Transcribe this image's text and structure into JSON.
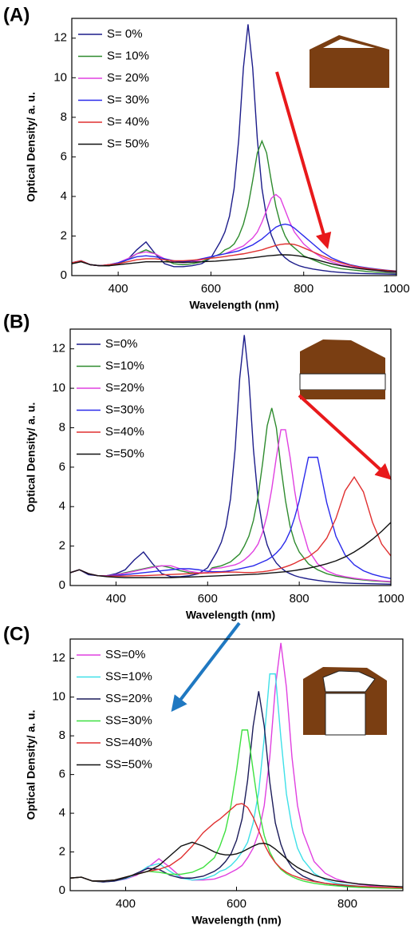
{
  "chart_data": [
    {
      "type": "line",
      "title": "(A)",
      "y_label": "Optical Density/ a. u.",
      "x_label": "Wavelength (nm)",
      "xlim": [
        300,
        1000
      ],
      "xticks": [
        400,
        600,
        800,
        1000
      ],
      "ylim": [
        0,
        13
      ],
      "yticks": [
        0,
        2,
        4,
        6,
        8,
        10,
        12
      ],
      "legend": "upper left",
      "x": [
        300,
        320,
        340,
        360,
        380,
        400,
        420,
        440,
        460,
        480,
        500,
        520,
        540,
        560,
        580,
        600,
        610,
        620,
        630,
        640,
        650,
        660,
        670,
        680,
        690,
        700,
        710,
        720,
        730,
        740,
        750,
        760,
        770,
        780,
        790,
        800,
        820,
        840,
        860,
        880,
        900,
        920,
        940,
        960,
        980,
        1000
      ],
      "series": [
        {
          "name": "S= 0%",
          "color": "#1c1c8a",
          "values": [
            0.65,
            0.75,
            0.55,
            0.5,
            0.5,
            0.6,
            0.8,
            1.3,
            1.7,
            1.1,
            0.6,
            0.45,
            0.45,
            0.5,
            0.6,
            0.9,
            1.3,
            1.7,
            2.2,
            3.0,
            4.4,
            6.9,
            10.5,
            12.7,
            10.5,
            6.9,
            4.4,
            2.95,
            2.06,
            1.5,
            1.14,
            0.9,
            0.72,
            0.6,
            0.5,
            0.43,
            0.33,
            0.26,
            0.2,
            0.16,
            0.13,
            0.11,
            0.1,
            0.09,
            0.08,
            0.07
          ]
        },
        {
          "name": "S= 10%",
          "color": "#2e8b2e",
          "values": [
            0.65,
            0.75,
            0.55,
            0.5,
            0.5,
            0.6,
            0.8,
            1.1,
            1.3,
            1.1,
            0.8,
            0.6,
            0.55,
            0.6,
            0.7,
            0.9,
            1.0,
            1.1,
            1.3,
            1.4,
            1.6,
            2.0,
            2.6,
            3.5,
            4.8,
            6.2,
            6.8,
            6.2,
            4.8,
            3.5,
            2.6,
            2.0,
            1.6,
            1.4,
            1.2,
            1.0,
            0.8,
            0.6,
            0.45,
            0.35,
            0.3,
            0.25,
            0.2,
            0.17,
            0.15,
            0.13
          ]
        },
        {
          "name": "S= 20%",
          "color": "#e040e0",
          "values": [
            0.65,
            0.75,
            0.55,
            0.5,
            0.55,
            0.65,
            0.85,
            1.1,
            1.2,
            1.1,
            0.85,
            0.7,
            0.65,
            0.7,
            0.8,
            0.95,
            1.0,
            1.05,
            1.1,
            1.2,
            1.3,
            1.4,
            1.5,
            1.7,
            1.9,
            2.2,
            2.7,
            3.3,
            3.9,
            4.1,
            3.9,
            3.3,
            2.7,
            2.2,
            1.9,
            1.6,
            1.2,
            0.9,
            0.7,
            0.55,
            0.45,
            0.38,
            0.3,
            0.25,
            0.2,
            0.17
          ]
        },
        {
          "name": "S= 30%",
          "color": "#2a2aeb",
          "values": [
            0.65,
            0.75,
            0.55,
            0.5,
            0.55,
            0.65,
            0.8,
            0.95,
            1.0,
            0.95,
            0.85,
            0.75,
            0.7,
            0.75,
            0.85,
            0.95,
            1.0,
            1.05,
            1.1,
            1.15,
            1.2,
            1.25,
            1.35,
            1.45,
            1.55,
            1.7,
            1.85,
            2.05,
            2.25,
            2.45,
            2.55,
            2.6,
            2.55,
            2.4,
            2.2,
            2.0,
            1.6,
            1.2,
            0.9,
            0.7,
            0.55,
            0.45,
            0.38,
            0.32,
            0.27,
            0.23
          ]
        },
        {
          "name": "S= 40%",
          "color": "#e03030",
          "values": [
            0.65,
            0.75,
            0.55,
            0.5,
            0.55,
            0.6,
            0.7,
            0.8,
            0.85,
            0.85,
            0.8,
            0.75,
            0.75,
            0.78,
            0.82,
            0.88,
            0.9,
            0.93,
            0.96,
            1.0,
            1.03,
            1.07,
            1.1,
            1.15,
            1.2,
            1.25,
            1.3,
            1.38,
            1.45,
            1.52,
            1.57,
            1.6,
            1.6,
            1.57,
            1.5,
            1.4,
            1.2,
            1.0,
            0.8,
            0.65,
            0.52,
            0.42,
            0.35,
            0.3,
            0.26,
            0.22
          ]
        },
        {
          "name": "S= 50%",
          "color": "#111111",
          "values": [
            0.6,
            0.7,
            0.55,
            0.5,
            0.5,
            0.55,
            0.6,
            0.65,
            0.7,
            0.7,
            0.7,
            0.68,
            0.67,
            0.68,
            0.7,
            0.72,
            0.73,
            0.75,
            0.77,
            0.79,
            0.81,
            0.83,
            0.85,
            0.88,
            0.9,
            0.93,
            0.96,
            0.99,
            1.01,
            1.03,
            1.05,
            1.05,
            1.04,
            1.02,
            0.99,
            0.95,
            0.85,
            0.72,
            0.6,
            0.5,
            0.42,
            0.35,
            0.3,
            0.26,
            0.22,
            0.2
          ]
        }
      ]
    },
    {
      "type": "line",
      "title": "(B)",
      "y_label": "Optical Density/ a. u.",
      "x_label": "Wavelength (nm)",
      "xlim": [
        300,
        1000
      ],
      "xticks": [
        400,
        600,
        800,
        1000
      ],
      "ylim": [
        0,
        13
      ],
      "yticks": [
        0,
        2,
        4,
        6,
        8,
        10,
        12
      ],
      "legend": "upper left",
      "x": [
        300,
        320,
        340,
        360,
        380,
        400,
        420,
        440,
        460,
        480,
        500,
        520,
        540,
        560,
        580,
        600,
        610,
        620,
        630,
        640,
        650,
        660,
        670,
        680,
        690,
        700,
        710,
        720,
        730,
        740,
        750,
        760,
        770,
        780,
        790,
        800,
        820,
        840,
        860,
        880,
        900,
        920,
        940,
        960,
        980,
        1000
      ],
      "series": [
        {
          "name": "S=0%",
          "color": "#1c1c8a",
          "values": [
            0.65,
            0.8,
            0.55,
            0.5,
            0.5,
            0.6,
            0.8,
            1.3,
            1.7,
            1.1,
            0.6,
            0.45,
            0.45,
            0.5,
            0.6,
            0.9,
            1.3,
            1.7,
            2.2,
            3.0,
            4.4,
            6.9,
            10.5,
            12.7,
            10.5,
            6.9,
            4.4,
            2.95,
            2.06,
            1.5,
            1.14,
            0.9,
            0.72,
            0.6,
            0.5,
            0.43,
            0.33,
            0.26,
            0.2,
            0.16,
            0.13,
            0.11,
            0.1,
            0.09,
            0.08,
            0.07
          ]
        },
        {
          "name": "S=10%",
          "color": "#2e8b2e",
          "values": [
            0.65,
            0.8,
            0.6,
            0.5,
            0.5,
            0.55,
            0.65,
            0.75,
            0.85,
            0.95,
            1.0,
            0.9,
            0.75,
            0.65,
            0.62,
            0.65,
            0.9,
            0.95,
            1.0,
            1.1,
            1.2,
            1.4,
            1.6,
            2.0,
            2.5,
            3.3,
            4.5,
            6.2,
            8.1,
            9.0,
            8.0,
            6.0,
            4.3,
            3.0,
            2.2,
            1.7,
            1.1,
            0.8,
            0.6,
            0.48,
            0.4,
            0.33,
            0.28,
            0.24,
            0.21,
            0.18
          ]
        },
        {
          "name": "S=20%",
          "color": "#e040e0",
          "values": [
            0.65,
            0.8,
            0.6,
            0.5,
            0.5,
            0.55,
            0.62,
            0.72,
            0.82,
            0.92,
            1.0,
            1.0,
            0.85,
            0.72,
            0.65,
            0.65,
            0.85,
            0.88,
            0.9,
            0.95,
            1.0,
            1.05,
            1.15,
            1.3,
            1.5,
            1.75,
            2.1,
            2.7,
            3.6,
            4.9,
            6.5,
            7.9,
            7.9,
            6.5,
            4.8,
            3.4,
            1.8,
            1.1,
            0.75,
            0.55,
            0.45,
            0.37,
            0.31,
            0.27,
            0.23,
            0.2
          ]
        },
        {
          "name": "S=30%",
          "color": "#2a2aeb",
          "values": [
            0.65,
            0.8,
            0.6,
            0.5,
            0.5,
            0.52,
            0.55,
            0.6,
            0.65,
            0.7,
            0.75,
            0.8,
            0.85,
            0.85,
            0.8,
            0.72,
            0.7,
            0.7,
            0.7,
            0.72,
            0.75,
            0.8,
            0.85,
            0.9,
            0.95,
            1.0,
            1.1,
            1.2,
            1.3,
            1.45,
            1.65,
            1.9,
            2.25,
            2.75,
            3.45,
            4.3,
            6.5,
            6.5,
            4.2,
            2.5,
            1.55,
            1.05,
            0.75,
            0.57,
            0.45,
            0.35
          ]
        },
        {
          "name": "S=40%",
          "color": "#e03030",
          "values": [
            0.65,
            0.8,
            0.6,
            0.5,
            0.48,
            0.48,
            0.48,
            0.5,
            0.5,
            0.52,
            0.54,
            0.56,
            0.58,
            0.6,
            0.62,
            0.64,
            0.65,
            0.66,
            0.67,
            0.68,
            0.68,
            0.68,
            0.67,
            0.66,
            0.66,
            0.66,
            0.68,
            0.7,
            0.73,
            0.77,
            0.82,
            0.88,
            0.95,
            1.03,
            1.13,
            1.25,
            1.45,
            1.8,
            2.4,
            3.4,
            4.8,
            5.5,
            4.75,
            3.2,
            2.1,
            1.5
          ]
        },
        {
          "name": "S=50%",
          "color": "#111111",
          "values": [
            0.65,
            0.8,
            0.6,
            0.5,
            0.45,
            0.42,
            0.4,
            0.4,
            0.4,
            0.4,
            0.4,
            0.4,
            0.42,
            0.43,
            0.45,
            0.47,
            0.48,
            0.49,
            0.5,
            0.51,
            0.52,
            0.53,
            0.54,
            0.55,
            0.56,
            0.57,
            0.58,
            0.6,
            0.62,
            0.64,
            0.66,
            0.68,
            0.7,
            0.73,
            0.76,
            0.8,
            0.88,
            0.98,
            1.1,
            1.25,
            1.45,
            1.7,
            2.0,
            2.35,
            2.75,
            3.2
          ]
        }
      ]
    },
    {
      "type": "line",
      "title": "(C)",
      "y_label": "Optical Density/ a. u.",
      "x_label": "Wavelength (nm)",
      "xlim": [
        300,
        900
      ],
      "xticks": [
        400,
        600,
        800
      ],
      "ylim": [
        0,
        13
      ],
      "yticks": [
        0,
        2,
        4,
        6,
        8,
        10,
        12
      ],
      "legend": "upper left",
      "x": [
        300,
        320,
        340,
        360,
        380,
        400,
        420,
        440,
        460,
        480,
        500,
        520,
        540,
        560,
        570,
        580,
        590,
        600,
        610,
        620,
        630,
        640,
        650,
        660,
        670,
        680,
        690,
        700,
        710,
        720,
        740,
        760,
        780,
        800,
        820,
        840,
        860,
        880,
        900
      ],
      "series": [
        {
          "name": "SS=0%",
          "color": "#e040e0",
          "values": [
            0.65,
            0.7,
            0.5,
            0.45,
            0.5,
            0.6,
            0.8,
            1.2,
            1.65,
            1.2,
            0.7,
            0.55,
            0.55,
            0.6,
            0.7,
            0.8,
            0.95,
            1.1,
            1.3,
            1.7,
            2.2,
            3.0,
            4.4,
            6.9,
            10.5,
            12.8,
            10.5,
            6.9,
            4.4,
            3.0,
            1.5,
            0.9,
            0.6,
            0.43,
            0.33,
            0.26,
            0.2,
            0.16,
            0.13
          ]
        },
        {
          "name": "SS=10%",
          "color": "#3ee0e8",
          "values": [
            0.65,
            0.7,
            0.5,
            0.45,
            0.5,
            0.62,
            0.85,
            1.25,
            1.4,
            1.0,
            0.65,
            0.55,
            0.6,
            0.8,
            1.0,
            1.1,
            1.3,
            1.6,
            2.0,
            2.5,
            3.5,
            5.1,
            7.9,
            11.2,
            11.2,
            7.9,
            5.0,
            3.3,
            2.2,
            1.6,
            0.9,
            0.55,
            0.38,
            0.3,
            0.24,
            0.2,
            0.17,
            0.15,
            0.13
          ]
        },
        {
          "name": "SS=20%",
          "color": "#1c1c5a",
          "values": [
            0.65,
            0.7,
            0.5,
            0.45,
            0.5,
            0.65,
            0.9,
            1.15,
            1.1,
            0.8,
            0.65,
            0.65,
            0.75,
            1.0,
            1.2,
            1.5,
            1.9,
            2.6,
            3.7,
            5.7,
            8.5,
            10.3,
            8.5,
            5.6,
            3.5,
            2.4,
            1.65,
            1.2,
            0.95,
            0.75,
            0.5,
            0.38,
            0.3,
            0.24,
            0.2,
            0.17,
            0.15,
            0.13,
            0.12
          ]
        },
        {
          "name": "SS=30%",
          "color": "#3ee040",
          "values": [
            0.65,
            0.7,
            0.5,
            0.5,
            0.55,
            0.7,
            0.85,
            1.0,
            0.95,
            0.85,
            0.85,
            0.95,
            1.2,
            1.7,
            2.3,
            3.1,
            4.4,
            6.2,
            8.3,
            8.3,
            6.2,
            4.2,
            2.85,
            2.0,
            1.45,
            1.1,
            0.88,
            0.72,
            0.6,
            0.5,
            0.38,
            0.3,
            0.25,
            0.2,
            0.17,
            0.15,
            0.13,
            0.12,
            0.11
          ]
        },
        {
          "name": "SS=40%",
          "color": "#e03030",
          "values": [
            0.65,
            0.7,
            0.5,
            0.5,
            0.55,
            0.7,
            0.85,
            1.0,
            1.1,
            1.3,
            1.7,
            2.3,
            3.0,
            3.5,
            3.7,
            3.95,
            4.2,
            4.45,
            4.5,
            4.3,
            3.8,
            3.1,
            2.4,
            1.85,
            1.45,
            1.15,
            0.95,
            0.8,
            0.7,
            0.6,
            0.47,
            0.38,
            0.32,
            0.27,
            0.23,
            0.2,
            0.18,
            0.16,
            0.14
          ]
        },
        {
          "name": "SS=50%",
          "color": "#111111",
          "values": [
            0.65,
            0.7,
            0.5,
            0.5,
            0.55,
            0.7,
            0.85,
            1.0,
            1.3,
            1.8,
            2.3,
            2.5,
            2.3,
            2.0,
            1.9,
            1.85,
            1.85,
            1.9,
            2.0,
            2.15,
            2.3,
            2.42,
            2.45,
            2.35,
            2.15,
            1.9,
            1.65,
            1.4,
            1.2,
            1.05,
            0.8,
            0.62,
            0.5,
            0.42,
            0.35,
            0.3,
            0.26,
            0.23,
            0.2
          ]
        }
      ]
    }
  ]
}
